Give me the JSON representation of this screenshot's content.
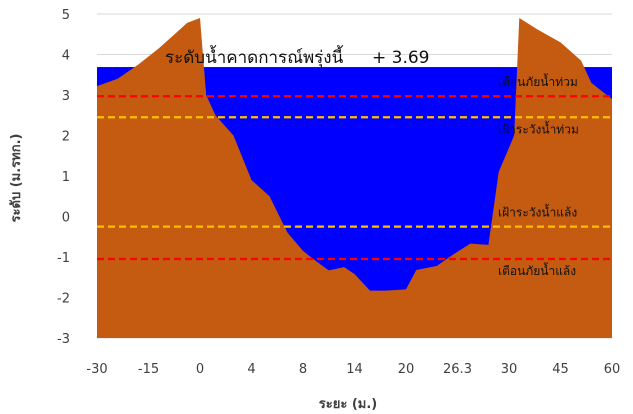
{
  "chart_data": {
    "type": "area",
    "title": "",
    "xlabel": "ระยะ (ม.)",
    "ylabel": "ระดับ (ม.รทก.)",
    "ylim": [
      -3,
      5
    ],
    "y_ticks": [
      "-3",
      "-2",
      "-1",
      "0",
      "1",
      "2",
      "3",
      "4",
      "5"
    ],
    "x_tick_labels": [
      "-30",
      "-15",
      "0",
      "4",
      "8",
      "14",
      "20",
      "26.3",
      "30",
      "45",
      "60"
    ],
    "grid": "horizontal",
    "legend": "none",
    "water_level": 3.69,
    "annotation": {
      "label": "ระดับน้ำคาดการณ์พรุ่งนี้",
      "value": "+ 3.69"
    },
    "thresholds": [
      {
        "label": "เตือนภัยน้ำท่วม",
        "value": 2.97,
        "color": "#ff0000"
      },
      {
        "label": "เฝ้าระวังน้ำท่วม",
        "value": 2.45,
        "color": "#ffc000"
      },
      {
        "label": "เฝ้าระวังน้ำแล้ง",
        "value": -0.25,
        "color": "#ffc000"
      },
      {
        "label": "เตือนภัยน้ำแล้ง",
        "value": -1.05,
        "color": "#ff0000"
      }
    ],
    "colors": {
      "ground": "#c55a11",
      "water": "#0000ff",
      "grid": "#d9d9d9",
      "tick_text": "#404040"
    },
    "cross_section": [
      {
        "pos": 0.0,
        "level": 3.22
      },
      {
        "pos": 0.4,
        "level": 3.4
      },
      {
        "pos": 0.8,
        "level": 3.75
      },
      {
        "pos": 1.2,
        "level": 4.15
      },
      {
        "pos": 1.55,
        "level": 4.55
      },
      {
        "pos": 1.75,
        "level": 4.78
      },
      {
        "pos": 2.0,
        "level": 4.9
      },
      {
        "pos": 2.12,
        "level": 3.0
      },
      {
        "pos": 2.3,
        "level": 2.5
      },
      {
        "pos": 2.65,
        "level": 2.0
      },
      {
        "pos": 3.0,
        "level": 0.9
      },
      {
        "pos": 3.35,
        "level": 0.5
      },
      {
        "pos": 3.7,
        "level": -0.4
      },
      {
        "pos": 4.0,
        "level": -0.85
      },
      {
        "pos": 4.25,
        "level": -1.1
      },
      {
        "pos": 4.5,
        "level": -1.33
      },
      {
        "pos": 4.8,
        "level": -1.25
      },
      {
        "pos": 5.0,
        "level": -1.42
      },
      {
        "pos": 5.3,
        "level": -1.83
      },
      {
        "pos": 5.6,
        "level": -1.83
      },
      {
        "pos": 6.0,
        "level": -1.8
      },
      {
        "pos": 6.2,
        "level": -1.32
      },
      {
        "pos": 6.6,
        "level": -1.22
      },
      {
        "pos": 6.9,
        "level": -0.95
      },
      {
        "pos": 7.25,
        "level": -0.67
      },
      {
        "pos": 7.6,
        "level": -0.7
      },
      {
        "pos": 7.8,
        "level": 1.1
      },
      {
        "pos": 8.1,
        "level": 2.0
      },
      {
        "pos": 8.2,
        "level": 4.9
      },
      {
        "pos": 8.55,
        "level": 4.62
      },
      {
        "pos": 9.0,
        "level": 4.3
      },
      {
        "pos": 9.4,
        "level": 3.85
      },
      {
        "pos": 9.6,
        "level": 3.3
      },
      {
        "pos": 10.0,
        "level": 2.9
      }
    ]
  }
}
